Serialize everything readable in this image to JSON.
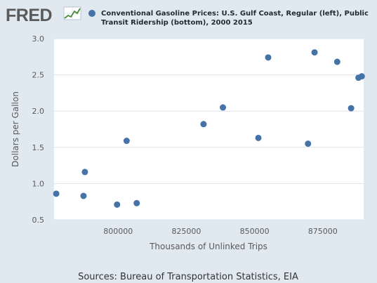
{
  "header": {
    "logo_text": "FRED",
    "legend_line1": "Conventional Gasoline Prices: U.S. Gulf Coast, Regular (left), Public",
    "legend_line2": "Transit Ridership (bottom), 2000 2015"
  },
  "footer": {
    "sources": "Sources: Bureau of Transportation Statistics, EIA"
  },
  "colors": {
    "background": "#e1e9f0",
    "plot_background": "#ffffff",
    "gridline": "#dde3ea",
    "marker": "#4572a7",
    "logo": "#5a5a5a"
  },
  "chart_data": {
    "type": "scatter",
    "xlabel": "Thousands of Unlinked Trips",
    "ylabel": "Dollars per Gallon",
    "xlim": [
      776500,
      890000
    ],
    "ylim": [
      0.5,
      3.0
    ],
    "xticks": [
      800000,
      825000,
      850000,
      875000
    ],
    "xtick_labels": [
      "800000",
      "825000",
      "850000",
      "875000"
    ],
    "yticks": [
      0.5,
      1.0,
      1.5,
      2.0,
      2.5,
      3.0
    ],
    "ytick_labels": [
      "0.5",
      "1.0",
      "1.5",
      "2.0",
      "2.5",
      "3.0"
    ],
    "grid": "horizontal",
    "series": [
      {
        "name": "Conventional Gasoline Prices: U.S. Gulf Coast, Regular (left), Public Transit Ridership (bottom), 2000 2015",
        "points": [
          {
            "x": 777300,
            "y": 0.86
          },
          {
            "x": 787300,
            "y": 0.83
          },
          {
            "x": 787800,
            "y": 1.16
          },
          {
            "x": 799600,
            "y": 0.71
          },
          {
            "x": 803100,
            "y": 1.59
          },
          {
            "x": 806800,
            "y": 0.73
          },
          {
            "x": 831300,
            "y": 1.82
          },
          {
            "x": 838400,
            "y": 2.05
          },
          {
            "x": 851400,
            "y": 1.63
          },
          {
            "x": 855000,
            "y": 2.74
          },
          {
            "x": 869600,
            "y": 1.55
          },
          {
            "x": 872000,
            "y": 2.81
          },
          {
            "x": 880300,
            "y": 2.68
          },
          {
            "x": 885400,
            "y": 2.04
          },
          {
            "x": 888100,
            "y": 2.46
          },
          {
            "x": 889300,
            "y": 2.48
          }
        ]
      }
    ]
  }
}
